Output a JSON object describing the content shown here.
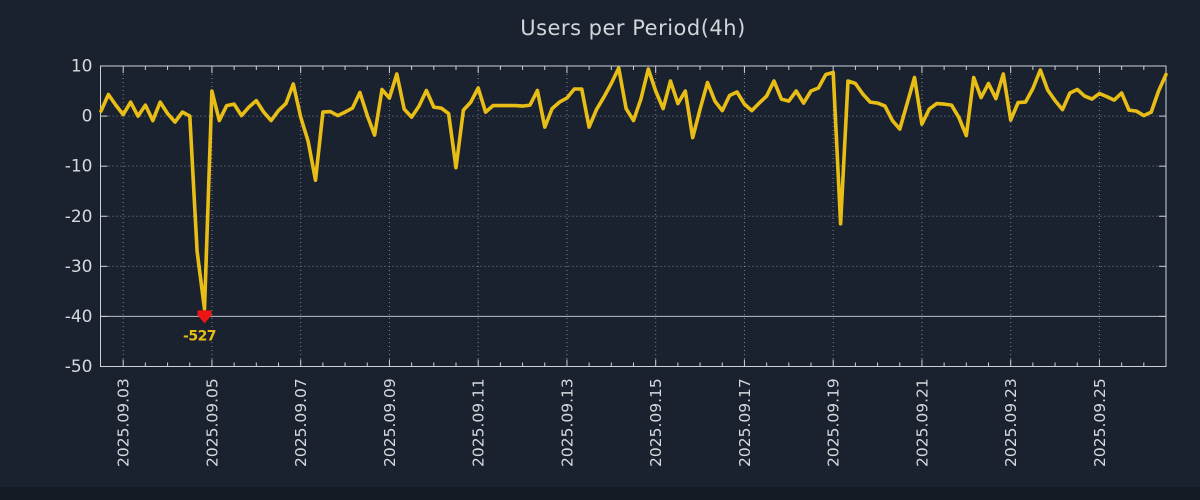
{
  "chart_data": {
    "type": "line",
    "title": "Users per Period(4h)",
    "series_name": "Users",
    "x_start": "2025-09-02 12:00",
    "x_step_hours": 4,
    "values": [
      1.0,
      4.3,
      2.2,
      0.3,
      2.8,
      0.0,
      2.2,
      -0.9,
      2.8,
      0.5,
      -1.2,
      0.8,
      0.0,
      -27,
      -527,
      5.0,
      -0.9,
      2.1,
      2.4,
      0.1,
      1.8,
      3.1,
      0.8,
      -0.9,
      1.1,
      2.5,
      6.4,
      -0.2,
      -5.0,
      -12.8,
      0.8,
      0.9,
      0.1,
      0.8,
      1.6,
      4.7,
      0.1,
      -3.8,
      5.3,
      3.6,
      8.4,
      1.4,
      -0.2,
      2.0,
      5.1,
      1.8,
      1.6,
      0.5,
      -10.3,
      1.2,
      2.8,
      5.6,
      0.8,
      2.1,
      2.1,
      2.1,
      2.1,
      2.0,
      2.2,
      5.1,
      -2.2,
      1.5,
      2.8,
      3.6,
      5.4,
      5.4,
      -2.2,
      1.3,
      3.8,
      6.5,
      9.6,
      1.5,
      -0.9,
      3.4,
      9.4,
      5.0,
      1.5,
      7.0,
      2.5,
      5.0,
      -4.3,
      1.4,
      6.7,
      3.0,
      1.1,
      4.1,
      4.8,
      2.4,
      1.1,
      2.6,
      4.0,
      7.0,
      3.4,
      3.0,
      5.0,
      2.6,
      5.0,
      5.6,
      8.3,
      8.7,
      -21.5,
      7.0,
      6.5,
      4.4,
      2.8,
      2.6,
      2.0,
      -0.9,
      -2.6,
      2.5,
      7.7,
      -1.6,
      1.4,
      2.5,
      2.4,
      2.2,
      -0.3,
      -3.9,
      7.7,
      3.7,
      6.5,
      3.5,
      8.4,
      -0.8,
      2.7,
      2.8,
      5.5,
      9.2,
      5.2,
      3.1,
      1.3,
      4.6,
      5.3,
      4.0,
      3.4,
      4.5,
      3.9,
      3.2,
      4.6,
      1.2,
      1.0,
      0.1,
      0.8,
      5.0,
      8.3
    ],
    "ylim": [
      -50,
      10
    ],
    "y_ticks": [
      10,
      0,
      -10,
      -20,
      -30,
      -40,
      -50
    ],
    "x_tick_labels": [
      "2025.09.03",
      "2025.09.05",
      "2025.09.07",
      "2025.09.09",
      "2025.09.11",
      "2025.09.13",
      "2025.09.15",
      "2025.09.17",
      "2025.09.19",
      "2025.09.21",
      "2025.09.23",
      "2025.09.25"
    ],
    "x_first_major_index": 3,
    "x_major_every": 12,
    "x_minor_every": 3,
    "grid": "dotted",
    "solid_hline_y": -40,
    "legend": "none",
    "annotation": {
      "index": 14,
      "value": -527,
      "label": "-527",
      "marker": "red-down-arrow",
      "clipped_at_y": -40
    },
    "line_color": "#e8be16",
    "marker_color": "#ed1515",
    "background_color": "#1a2230",
    "grid_color": "#9097a1",
    "axis_color": "#ccd1d8",
    "tick_label_color": "#d6d9dd"
  }
}
